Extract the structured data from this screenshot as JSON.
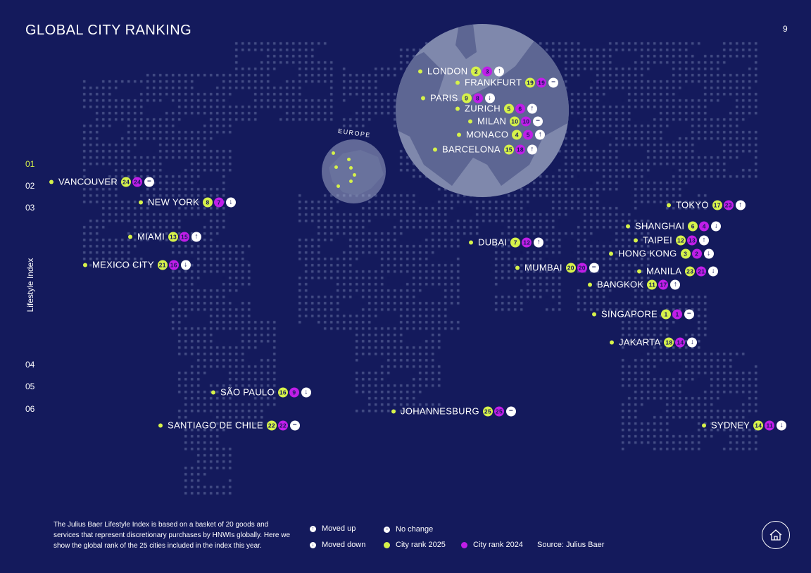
{
  "header": {
    "title": "GLOBAL CITY RANKING",
    "page_number": "9"
  },
  "side_axis": {
    "label": "Lifestyle Index",
    "numbers": [
      "01",
      "02",
      "03",
      "04",
      "05",
      "06"
    ],
    "active": "01"
  },
  "europe_inset": {
    "label": "EUROPE"
  },
  "cities": [
    {
      "name": "VANCOUVER",
      "rank2025": "24",
      "rank2024": "24",
      "trend": "no-change"
    },
    {
      "name": "NEW YORK",
      "rank2025": "8",
      "rank2024": "7",
      "trend": "down"
    },
    {
      "name": "MIAMI",
      "rank2025": "13",
      "rank2024": "15",
      "trend": "up"
    },
    {
      "name": "MEXICO CITY",
      "rank2025": "21",
      "rank2024": "16",
      "trend": "down"
    },
    {
      "name": "SÃO PAULO",
      "rank2025": "16",
      "rank2024": "9",
      "trend": "down"
    },
    {
      "name": "SANTIAGO DE CHILE",
      "rank2025": "22",
      "rank2024": "22",
      "trend": "no-change"
    },
    {
      "name": "LONDON",
      "rank2025": "2",
      "rank2024": "3",
      "trend": "up"
    },
    {
      "name": "FRANKFURT",
      "rank2025": "19",
      "rank2024": "19",
      "trend": "no-change"
    },
    {
      "name": "PARIS",
      "rank2025": "9",
      "rank2024": "8",
      "trend": "down"
    },
    {
      "name": "ZURICH",
      "rank2025": "5",
      "rank2024": "6",
      "trend": "up"
    },
    {
      "name": "MILAN",
      "rank2025": "10",
      "rank2024": "10",
      "trend": "no-change"
    },
    {
      "name": "MONACO",
      "rank2025": "4",
      "rank2024": "5",
      "trend": "up"
    },
    {
      "name": "BARCELONA",
      "rank2025": "15",
      "rank2024": "18",
      "trend": "up"
    },
    {
      "name": "DUBAI",
      "rank2025": "7",
      "rank2024": "12",
      "trend": "up"
    },
    {
      "name": "MUMBAI",
      "rank2025": "20",
      "rank2024": "20",
      "trend": "no-change"
    },
    {
      "name": "JOHANNESBURG",
      "rank2025": "25",
      "rank2024": "25",
      "trend": "no-change"
    },
    {
      "name": "TOKYO",
      "rank2025": "17",
      "rank2024": "23",
      "trend": "up"
    },
    {
      "name": "SHANGHAI",
      "rank2025": "6",
      "rank2024": "4",
      "trend": "down"
    },
    {
      "name": "TAIPEI",
      "rank2025": "12",
      "rank2024": "13",
      "trend": "up"
    },
    {
      "name": "HONG KONG",
      "rank2025": "3",
      "rank2024": "2",
      "trend": "down"
    },
    {
      "name": "MANILA",
      "rank2025": "23",
      "rank2024": "21",
      "trend": "down"
    },
    {
      "name": "BANGKOK",
      "rank2025": "11",
      "rank2024": "17",
      "trend": "up"
    },
    {
      "name": "SINGAPORE",
      "rank2025": "1",
      "rank2024": "1",
      "trend": "no-change"
    },
    {
      "name": "JAKARTA",
      "rank2025": "18",
      "rank2024": "14",
      "trend": "down"
    },
    {
      "name": "SYDNEY",
      "rank2025": "14",
      "rank2024": "11",
      "trend": "down"
    }
  ],
  "footer": {
    "description": "The Julius Baer Lifestyle Index is based on a basket of 20 goods and services that represent discretionary purchases by HNWIs globally. Here we show the global rank of the 25 cities included in the index this year.",
    "legend": {
      "moved_up": "Moved up",
      "moved_down": "Moved down",
      "no_change": "No change",
      "city_rank_2025": "City rank 2025",
      "city_rank_2024": "City rank 2024",
      "source": "Source: Julius Baer"
    }
  },
  "colors": {
    "background": "#141a5c",
    "rank2025": "#d6f24a",
    "rank2024": "#c01ee8",
    "text": "#ffffff"
  },
  "icons": {
    "up": "arrow-up-icon",
    "down": "arrow-down-icon",
    "no-change": "minus-icon",
    "home": "home-icon"
  }
}
